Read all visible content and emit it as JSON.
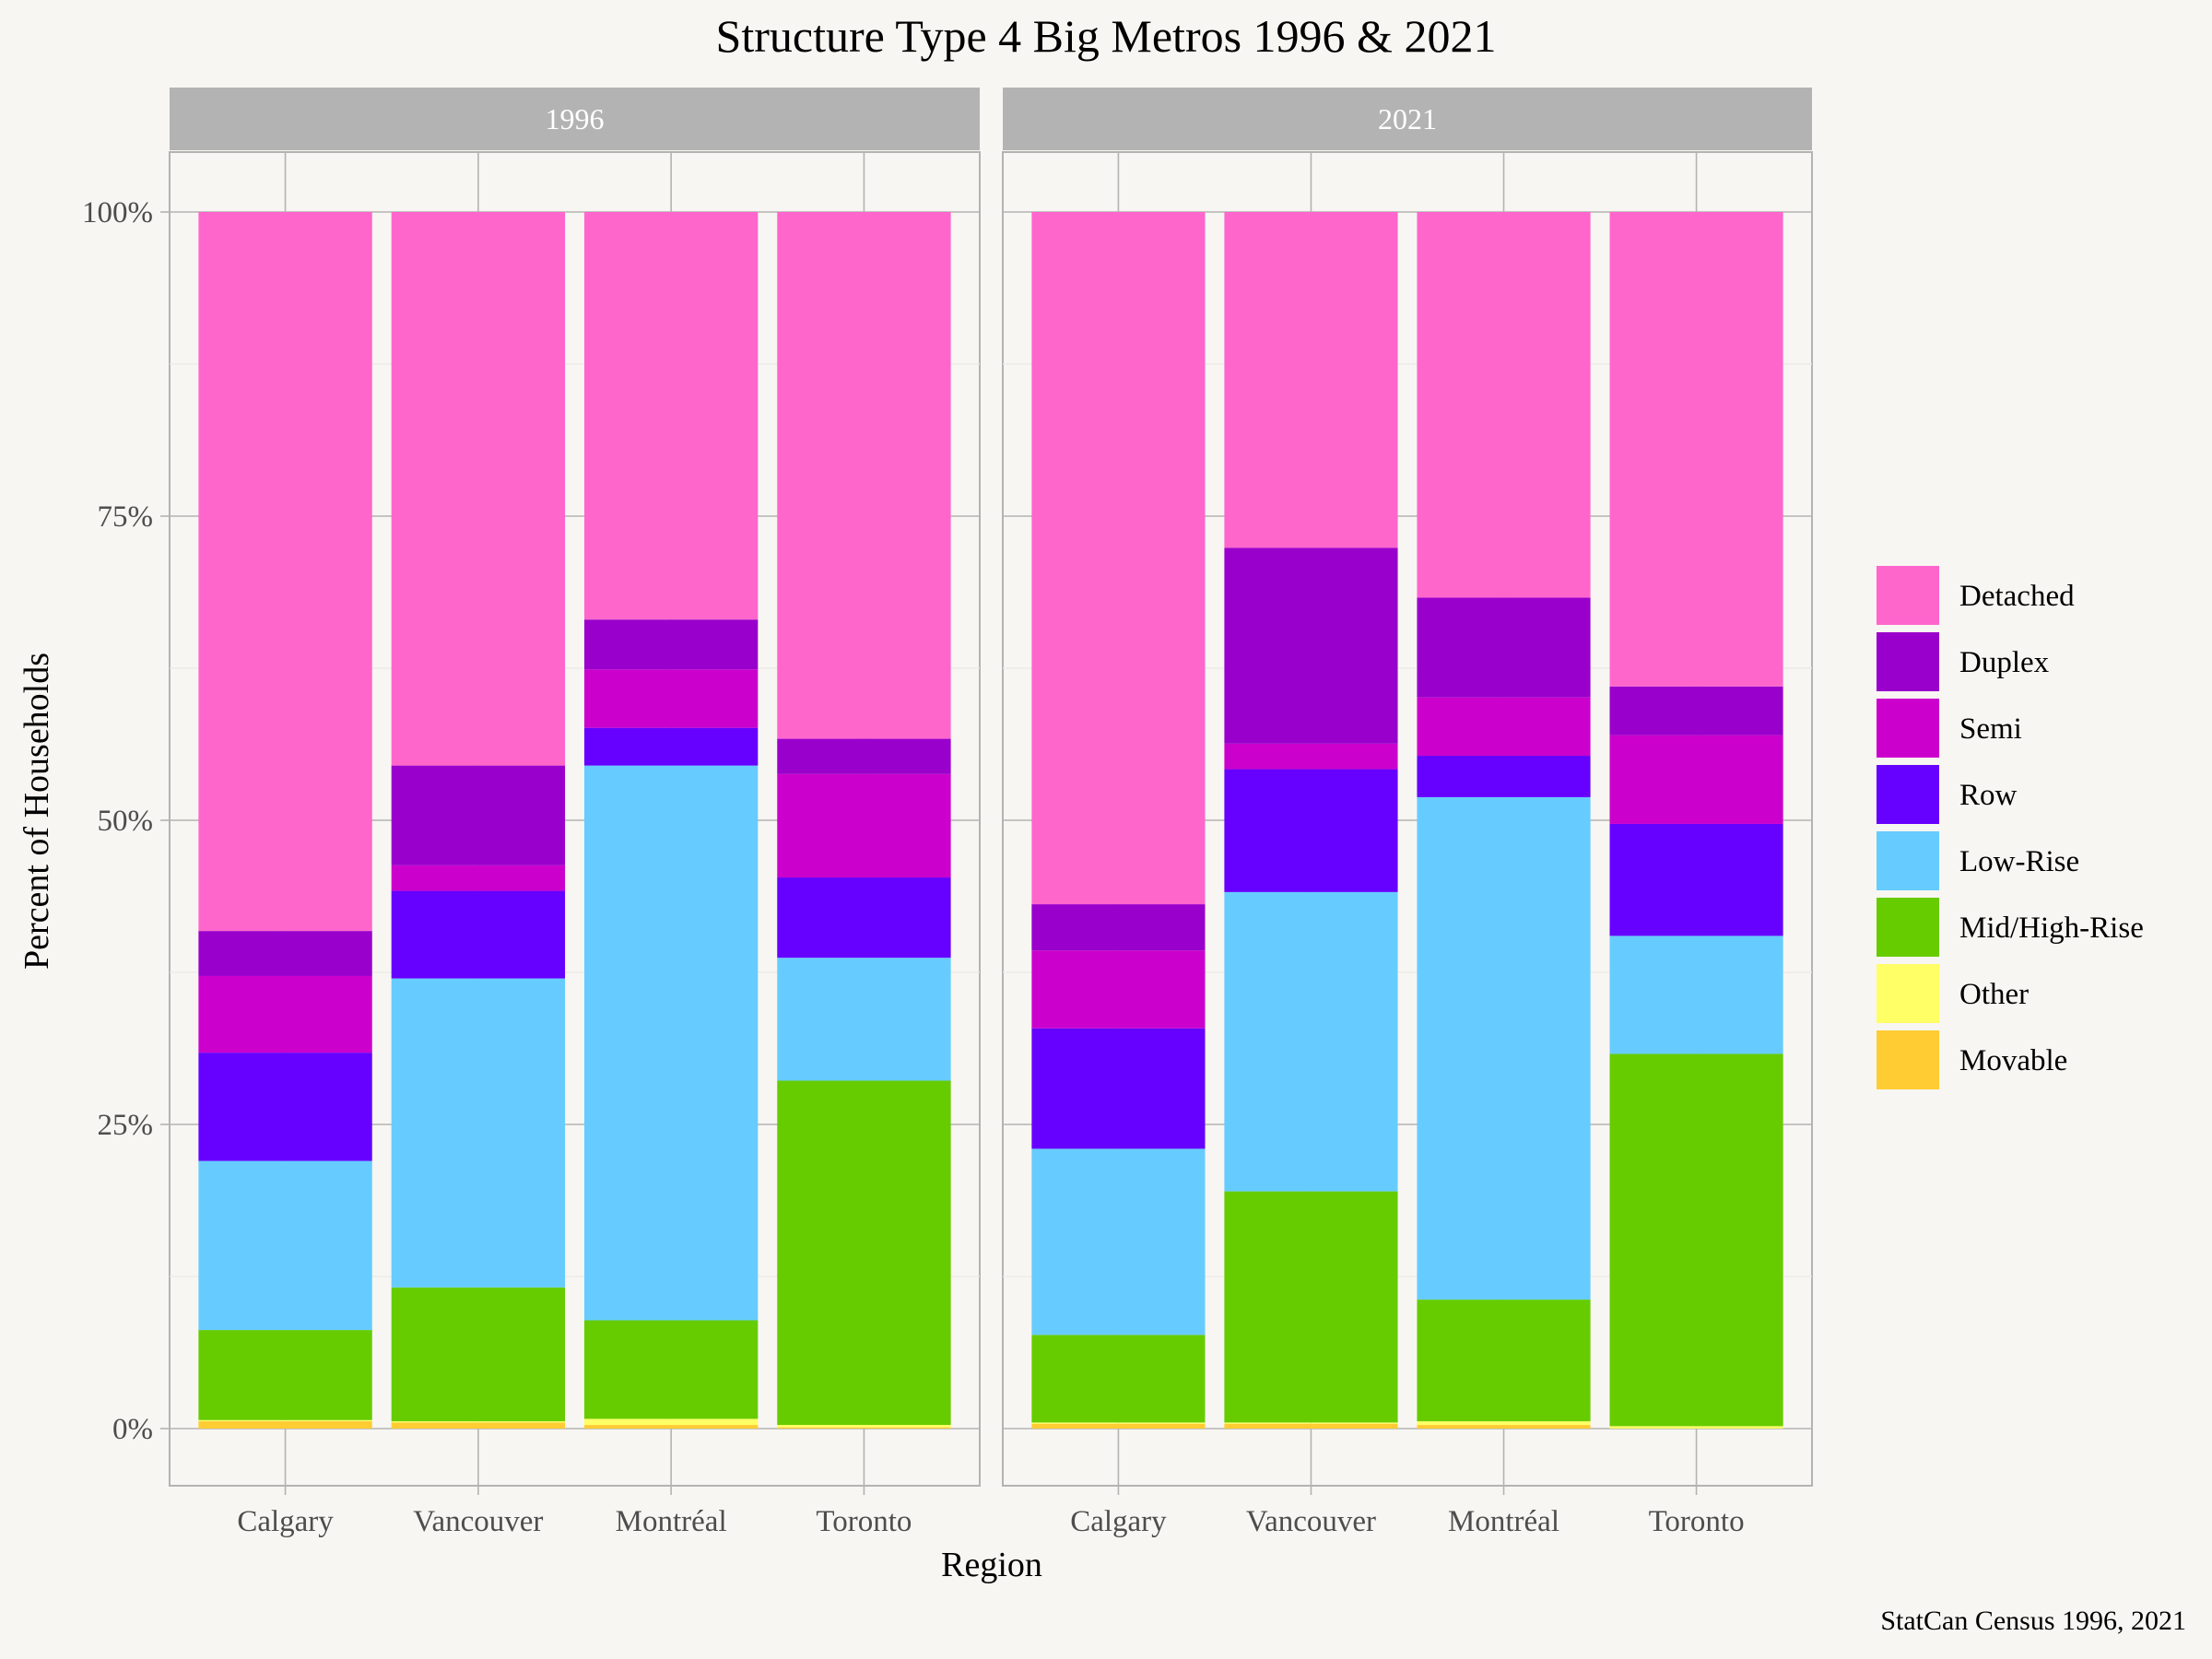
{
  "chart_data": {
    "type": "bar",
    "stacked": true,
    "title": "Structure Type 4 Big Metros 1996 & 2021",
    "xlabel": "Region",
    "ylabel": "Percent of Households",
    "caption": "StatCan Census 1996, 2021",
    "ylim": [
      0,
      1
    ],
    "yticks": [
      0,
      0.25,
      0.5,
      0.75,
      1
    ],
    "ytick_labels": [
      "0%",
      "25%",
      "50%",
      "75%",
      "100%"
    ],
    "grid": true,
    "legend_position": "right",
    "categories": [
      "Calgary",
      "Vancouver",
      "Montréal",
      "Toronto"
    ],
    "stack_order_bottom_to_top": [
      "Movable",
      "Other",
      "Mid/High-Rise",
      "Low-Rise",
      "Row",
      "Semi",
      "Duplex",
      "Detached"
    ],
    "legend_order": [
      "Detached",
      "Duplex",
      "Semi",
      "Row",
      "Low-Rise",
      "Mid/High-Rise",
      "Other",
      "Movable"
    ],
    "colors": {
      "Detached": "#ff66cc",
      "Duplex": "#9900cc",
      "Semi": "#cc00cc",
      "Row": "#6600ff",
      "Low-Rise": "#66ccff",
      "Mid/High-Rise": "#66cc00",
      "Other": "#ffff66",
      "Movable": "#ffcc33"
    },
    "facets": [
      {
        "label": "1996",
        "values": {
          "Movable": [
            0.006,
            0.005,
            0.003,
            0.001
          ],
          "Other": [
            0.001,
            0.001,
            0.005,
            0.002
          ],
          "Mid/High-Rise": [
            0.074,
            0.11,
            0.081,
            0.283
          ],
          "Low-Rise": [
            0.139,
            0.254,
            0.456,
            0.101
          ],
          "Row": [
            0.089,
            0.072,
            0.031,
            0.066
          ],
          "Semi": [
            0.063,
            0.021,
            0.048,
            0.085
          ],
          "Duplex": [
            0.037,
            0.082,
            0.041,
            0.029
          ],
          "Detached": [
            0.591,
            0.455,
            0.335,
            0.433
          ]
        }
      },
      {
        "label": "2021",
        "values": {
          "Movable": [
            0.004,
            0.004,
            0.003,
            0.0
          ],
          "Other": [
            0.001,
            0.001,
            0.003,
            0.002
          ],
          "Mid/High-Rise": [
            0.072,
            0.19,
            0.1,
            0.306
          ],
          "Low-Rise": [
            0.153,
            0.246,
            0.413,
            0.097
          ],
          "Row": [
            0.099,
            0.101,
            0.034,
            0.092
          ],
          "Semi": [
            0.064,
            0.021,
            0.048,
            0.073
          ],
          "Duplex": [
            0.038,
            0.161,
            0.082,
            0.04
          ],
          "Detached": [
            0.569,
            0.276,
            0.317,
            0.39
          ]
        }
      }
    ]
  }
}
